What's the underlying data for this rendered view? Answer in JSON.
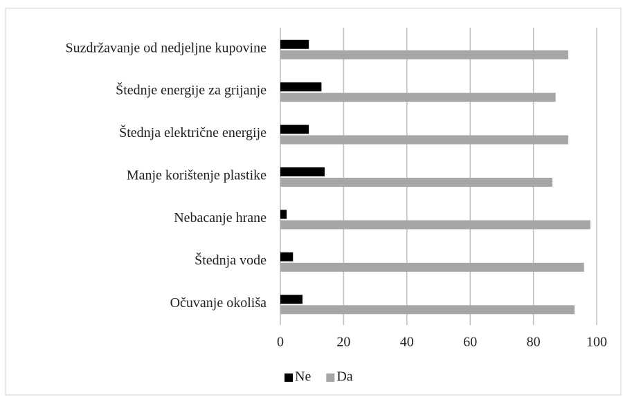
{
  "chart_data": {
    "type": "hbar",
    "categories": [
      "Suzdržavanje od nedjeljne kupovine",
      "Štednje energije za grijanje",
      "Štednja električne energije",
      "Manje korištenje plastike",
      "Nebacanje hrane",
      "Štednja vode",
      "Očuvanje okoliša"
    ],
    "series": [
      {
        "name": "Ne",
        "color": "#000000",
        "values": [
          9,
          13,
          9,
          14,
          2,
          4,
          7
        ]
      },
      {
        "name": "Da",
        "color": "#a6a6a6",
        "values": [
          91,
          87,
          91,
          86,
          98,
          96,
          93
        ]
      }
    ],
    "xlim": [
      0,
      100
    ],
    "xticks": [
      0,
      20,
      40,
      60,
      80,
      100
    ],
    "grid": true,
    "legend": "bottom"
  }
}
